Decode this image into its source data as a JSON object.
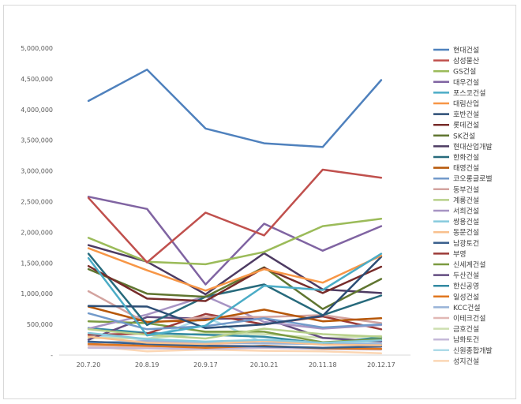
{
  "chart_data": {
    "type": "line",
    "title": "",
    "xlabel": "",
    "ylabel": "",
    "ylim": [
      0,
      5000000
    ],
    "yticks": [
      0,
      500000,
      1000000,
      1500000,
      2000000,
      2500000,
      3000000,
      3500000,
      4000000,
      4500000,
      5000000
    ],
    "ytick_labels": [
      "-",
      "500,000",
      "1,000,000",
      "1,500,000",
      "2,000,000",
      "2,500,000",
      "3,000,000",
      "3,500,000",
      "4,000,000",
      "4,500,000",
      "5,000,000"
    ],
    "categories": [
      "20.7.20",
      "20.8.19",
      "20.9.17",
      "20.10.21",
      "20.11.18",
      "20.12.17"
    ],
    "legend_position": "right",
    "series": [
      {
        "name": "현대건설",
        "color": "#4f81bd",
        "values": [
          4140000,
          4650000,
          3690000,
          3450000,
          3390000,
          4480000
        ]
      },
      {
        "name": "삼성물산",
        "color": "#c0504d",
        "values": [
          2560000,
          1510000,
          2320000,
          1950000,
          3020000,
          2890000
        ]
      },
      {
        "name": "GS건설",
        "color": "#9bbb59",
        "values": [
          1910000,
          1520000,
          1480000,
          1680000,
          2100000,
          2220000
        ]
      },
      {
        "name": "대우건설",
        "color": "#8064a2",
        "values": [
          2580000,
          2380000,
          1150000,
          2140000,
          1700000,
          2100000
        ]
      },
      {
        "name": "포스코건설",
        "color": "#4bacc6",
        "values": [
          1580000,
          320000,
          480000,
          1130000,
          1060000,
          1650000
        ]
      },
      {
        "name": "대림산업",
        "color": "#f79646",
        "values": [
          1740000,
          1380000,
          1050000,
          1400000,
          1180000,
          1620000
        ]
      },
      {
        "name": "호반건설",
        "color": "#2c4d75",
        "values": [
          800000,
          790000,
          440000,
          500000,
          640000,
          1600000
        ]
      },
      {
        "name": "롯데건설",
        "color": "#772c2a",
        "values": [
          1450000,
          920000,
          880000,
          1420000,
          1010000,
          1440000
        ]
      },
      {
        "name": "SK건설",
        "color": "#5f7530",
        "values": [
          1400000,
          1000000,
          950000,
          1430000,
          750000,
          1240000
        ]
      },
      {
        "name": "현대산업개발",
        "color": "#4d3b62",
        "values": [
          1790000,
          1520000,
          990000,
          1660000,
          1070000,
          1010000
        ]
      },
      {
        "name": "한화건설",
        "color": "#276a7c",
        "values": [
          1650000,
          490000,
          950000,
          1150000,
          650000,
          970000
        ]
      },
      {
        "name": "태영건설",
        "color": "#b65708",
        "values": [
          790000,
          540000,
          570000,
          740000,
          550000,
          600000
        ]
      },
      {
        "name": "코오롱글로벌",
        "color": "#729aca",
        "values": [
          680000,
          420000,
          470000,
          600000,
          450000,
          500000
        ]
      },
      {
        "name": "동부건설",
        "color": "#d3a39f",
        "values": [
          1040000,
          520000,
          620000,
          620000,
          650000,
          520000
        ]
      },
      {
        "name": "계룡건설",
        "color": "#b7d08a",
        "values": [
          420000,
          330000,
          270000,
          430000,
          340000,
          300000
        ]
      },
      {
        "name": "서희건설",
        "color": "#a794c3",
        "values": [
          430000,
          660000,
          960000,
          540000,
          430000,
          490000
        ]
      },
      {
        "name": "쌍용건설",
        "color": "#86cadd",
        "values": [
          360000,
          260000,
          220000,
          250000,
          200000,
          240000
        ]
      },
      {
        "name": "동문건설",
        "color": "#f9c08e",
        "values": [
          300000,
          200000,
          180000,
          230000,
          170000,
          160000
        ]
      },
      {
        "name": "남광토건",
        "color": "#3a5f8c",
        "values": [
          220000,
          180000,
          150000,
          140000,
          120000,
          140000
        ]
      },
      {
        "name": "부영",
        "color": "#9c3a37",
        "values": [
          330000,
          350000,
          670000,
          500000,
          630000,
          420000
        ]
      },
      {
        "name": "신세계건설",
        "color": "#7b9a40",
        "values": [
          550000,
          520000,
          380000,
          380000,
          210000,
          260000
        ]
      },
      {
        "name": "두산건설",
        "color": "#634c80",
        "values": [
          250000,
          620000,
          590000,
          600000,
          280000,
          220000
        ]
      },
      {
        "name": "한신공영",
        "color": "#338aa2",
        "values": [
          440000,
          360000,
          330000,
          300000,
          190000,
          290000
        ]
      },
      {
        "name": "일성건설",
        "color": "#e0761e",
        "values": [
          180000,
          150000,
          120000,
          150000,
          110000,
          100000
        ]
      },
      {
        "name": "KCC건설",
        "color": "#98b3d8",
        "values": [
          200000,
          230000,
          200000,
          190000,
          180000,
          180000
        ]
      },
      {
        "name": "이테크건설",
        "color": "#e1b8b5",
        "values": [
          160000,
          130000,
          170000,
          140000,
          120000,
          110000
        ]
      },
      {
        "name": "금호건설",
        "color": "#cddfb0",
        "values": [
          280000,
          270000,
          360000,
          340000,
          280000,
          310000
        ]
      },
      {
        "name": "남화토건",
        "color": "#c4b8d8",
        "values": [
          120000,
          110000,
          100000,
          120000,
          100000,
          90000
        ]
      },
      {
        "name": "신원종합개발",
        "color": "#addbe8",
        "values": [
          330000,
          250000,
          620000,
          200000,
          190000,
          220000
        ]
      },
      {
        "name": "성지건설",
        "color": "#fbd6b4",
        "values": [
          150000,
          60000,
          90000,
          70000,
          60000,
          30000
        ]
      }
    ]
  }
}
